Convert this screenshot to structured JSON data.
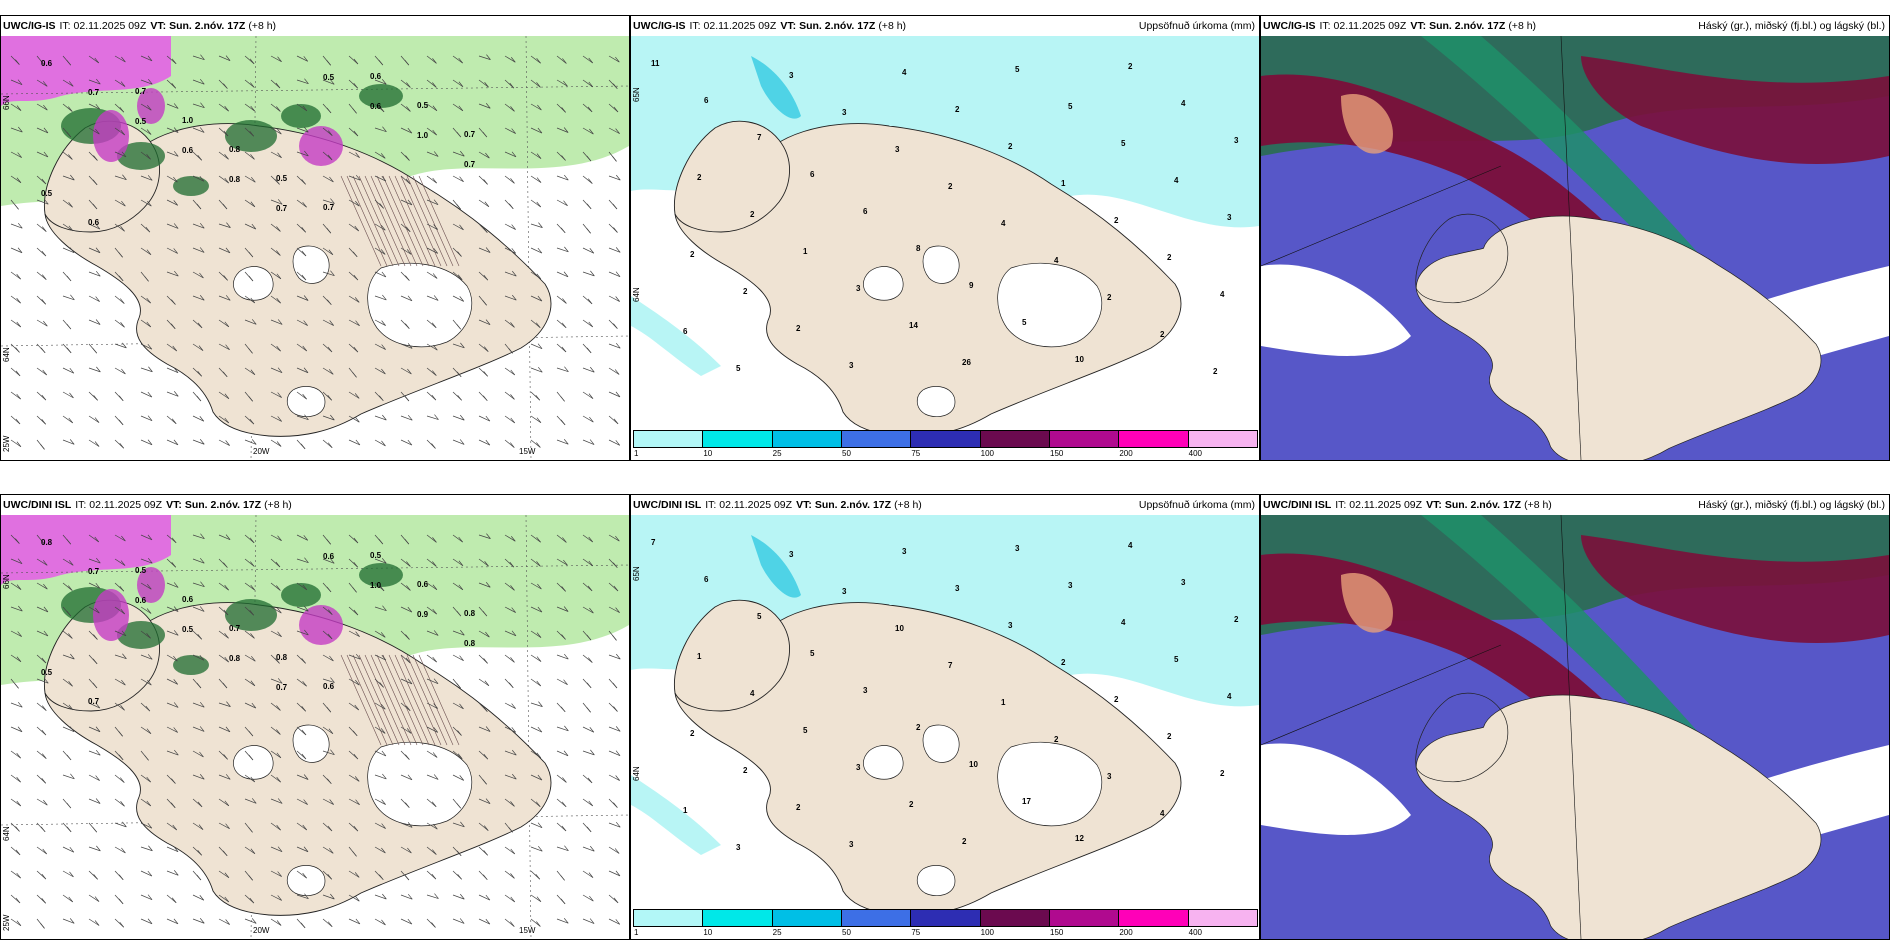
{
  "rows": [
    {
      "model": "UWC/IG-IS",
      "panels": [
        {
          "it_label": "IT:",
          "it_value": "02.11.2025 09Z",
          "vt_label": "VT:",
          "vt_value": "Sun. 2.nóv. 17Z",
          "lead": "(+8 h)",
          "title": ""
        },
        {
          "it_label": "IT:",
          "it_value": "02.11.2025 09Z",
          "vt_label": "VT:",
          "vt_value": "Sun. 2.nóv. 17Z",
          "lead": "(+8 h)",
          "title": "Uppsöfnuð úrkoma (mm)"
        },
        {
          "it_label": "IT:",
          "it_value": "02.11.2025 09Z",
          "vt_label": "VT:",
          "vt_value": "Sun. 2.nóv. 17Z",
          "lead": "(+8 h)",
          "title": "Háský (gr.), miðský (fj.bl.) og lágský (bl.)"
        }
      ]
    },
    {
      "model": "UWC/DINI ISL",
      "panels": [
        {
          "it_label": "IT:",
          "it_value": "02.11.2025 09Z",
          "vt_label": "VT:",
          "vt_value": "Sun. 2.nóv. 17Z",
          "lead": "(+8 h)",
          "title": ""
        },
        {
          "it_label": "IT:",
          "it_value": "02.11.2025 09Z",
          "vt_label": "VT:",
          "vt_value": "Sun. 2.nóv. 17Z",
          "lead": "(+8 h)",
          "title": "Uppsöfnuð úrkoma (mm)"
        },
        {
          "it_label": "IT:",
          "it_value": "02.11.2025 09Z",
          "vt_label": "VT:",
          "vt_value": "Sun. 2.nóv. 17Z",
          "lead": "(+8 h)",
          "title": "Háský (gr.), miðský (fj.bl.) og lágský (bl.)"
        }
      ]
    }
  ],
  "grid_labels": {
    "lon_20w": "20W",
    "lon_15w": "15W",
    "lon_25w": "25W",
    "lat_65n": "65N",
    "lat_66n": "66N",
    "lat_64n": "64N"
  },
  "colorbar": {
    "ticks": [
      "1",
      "10",
      "25",
      "50",
      "75",
      "100",
      "150",
      "200",
      "400"
    ],
    "colors": [
      "#b2f7f7",
      "#00e8e8",
      "#00bfe6",
      "#3d6fe6",
      "#2d2db3",
      "#6b0a4f",
      "#b00a8f",
      "#ff00b8",
      "#f7b3f0"
    ]
  },
  "colors": {
    "land": "#efe3d3",
    "precip_light": "#b8f5f5",
    "precip_mid": "#4fd3e6",
    "cloud_high": "#7b0f3a",
    "cloud_mid": "#5757c8",
    "cloud_low": "#1e8f6a",
    "snow_light": "#b8e9a6",
    "snow_dark": "#1d6b2f",
    "snow_heavy": "#c43cc4"
  },
  "values_p1_top": [
    "0.6",
    "0.7",
    "0.5",
    "0.6",
    "0.8",
    "0.7",
    "0.5",
    "0.6",
    "1.0",
    "0.7",
    "0.5",
    "0.6",
    "0.7",
    "1.0",
    "0.8",
    "0.5",
    "0.7",
    "0.6",
    "0.5",
    "0.7"
  ],
  "values_p2_top": [
    "11",
    "6",
    "7",
    "6",
    "6",
    "8",
    "9",
    "5",
    "10",
    "2",
    "4",
    "3",
    "2",
    "2",
    "1",
    "3",
    "14",
    "26",
    "5",
    "5",
    "5",
    "4",
    "3",
    "2",
    "2",
    "2",
    "3",
    "4",
    "2",
    "2",
    "1",
    "2",
    "2",
    "4",
    "6",
    "5",
    "3",
    "3",
    "3",
    "2",
    "4",
    "4",
    "2",
    "2",
    "2"
  ],
  "values_p1_bot": [
    "0.8",
    "0.7",
    "0.6",
    "0.5",
    "0.8",
    "0.7",
    "0.6",
    "1.0",
    "0.9",
    "0.8",
    "0.5",
    "0.7",
    "0.5",
    "0.6",
    "0.7",
    "0.8",
    "0.6",
    "0.5",
    "0.6",
    "0.8"
  ],
  "values_p2_bot": [
    "7",
    "6",
    "5",
    "5",
    "3",
    "2",
    "10",
    "17",
    "12",
    "4",
    "3",
    "2",
    "1",
    "4",
    "5",
    "3",
    "2",
    "2",
    "3",
    "3",
    "4",
    "5",
    "4",
    "2",
    "2",
    "2",
    "3",
    "3",
    "3",
    "3",
    "2",
    "2",
    "2",
    "2",
    "1",
    "3",
    "3",
    "3",
    "10",
    "7",
    "1",
    "2",
    "3",
    "4"
  ]
}
